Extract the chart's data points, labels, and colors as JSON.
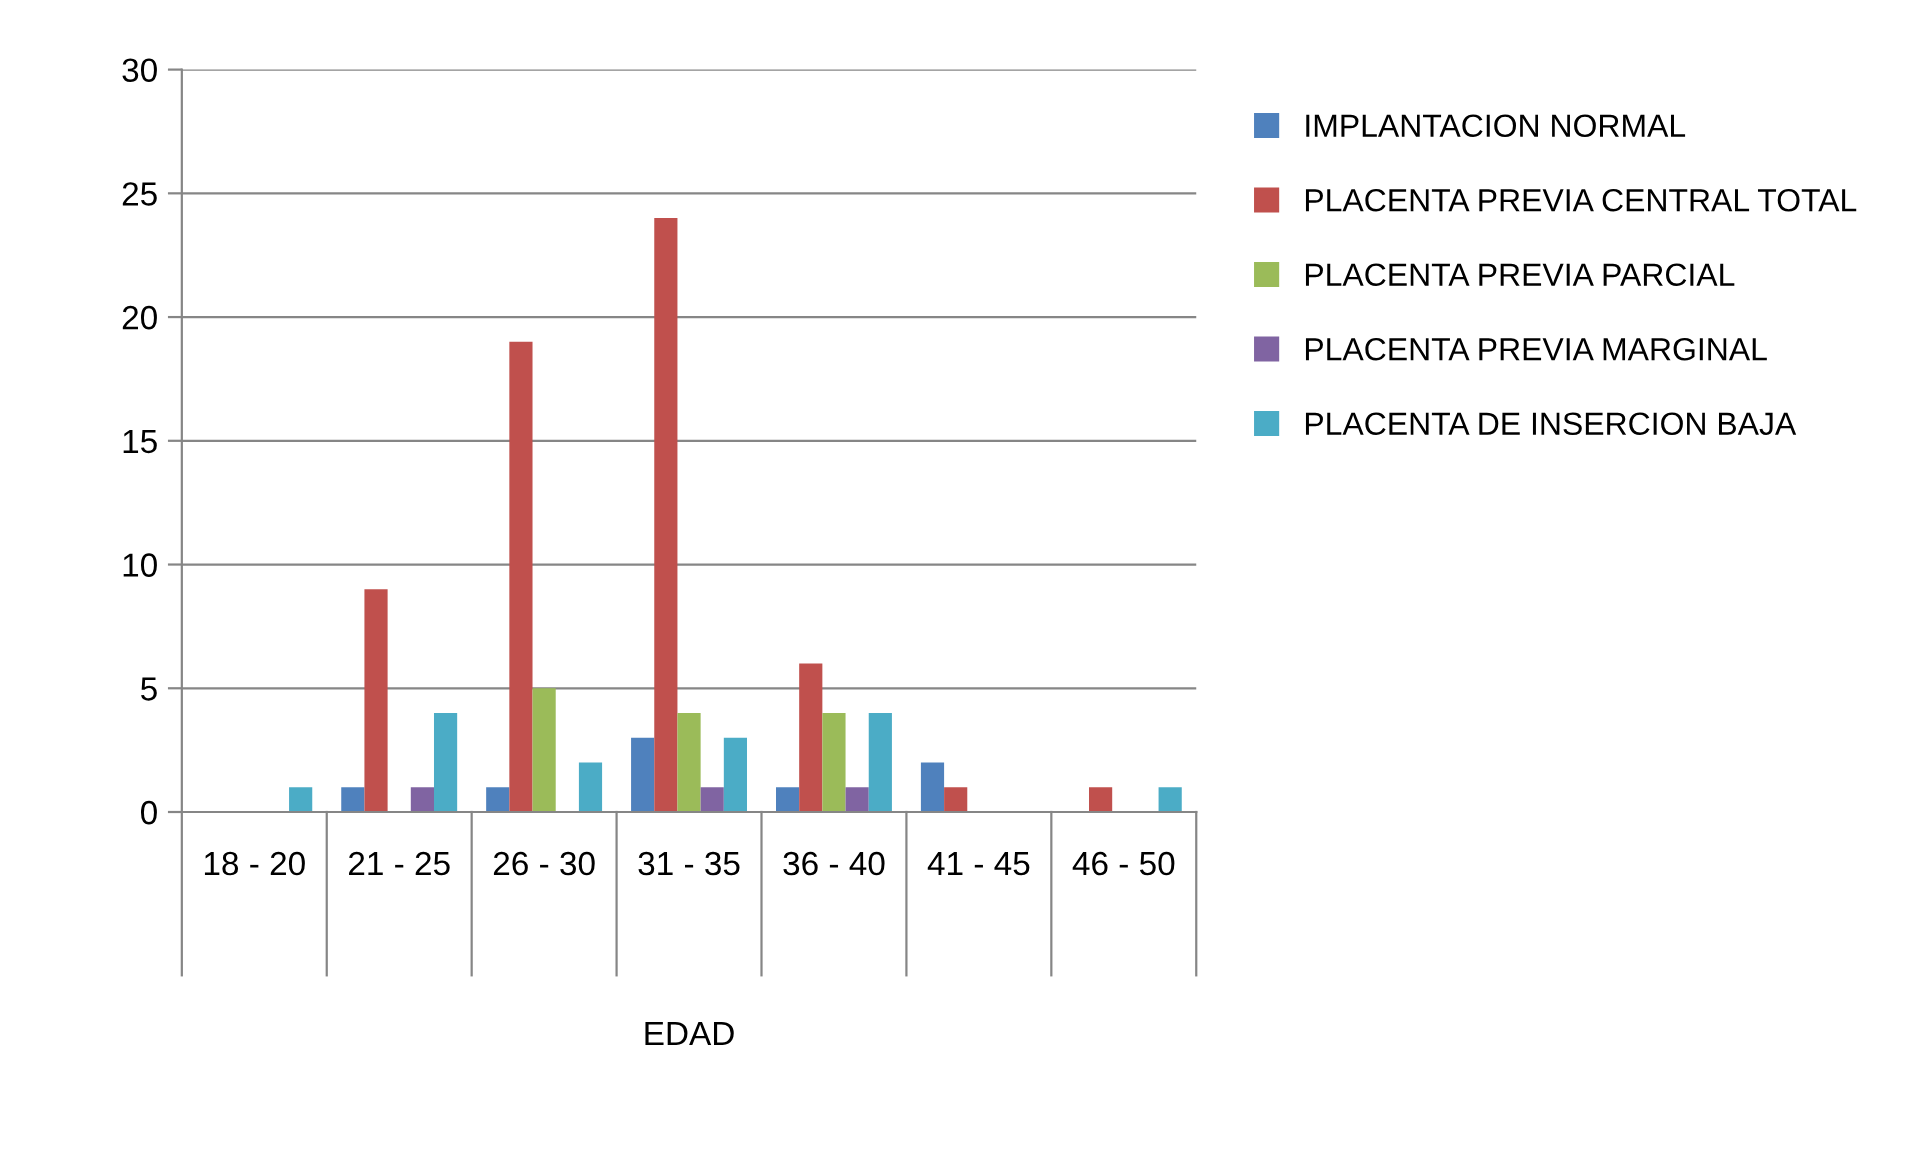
{
  "chart_data": {
    "type": "bar",
    "xlabel": "EDAD",
    "categories": [
      "18 - 20",
      "21 - 25",
      "26 - 30",
      "31 - 35",
      "36 - 40",
      "41 - 45",
      "46 - 50"
    ],
    "series": [
      {
        "name": "IMPLANTACION NORMAL",
        "color": "#4f81bd",
        "values": [
          0,
          1,
          1,
          3,
          1,
          2,
          0
        ]
      },
      {
        "name": "PLACENTA PREVIA CENTRAL TOTAL",
        "color": "#c0504d",
        "values": [
          0,
          9,
          19,
          24,
          6,
          1,
          1
        ]
      },
      {
        "name": "PLACENTA PREVIA PARCIAL",
        "color": "#9bbb59",
        "values": [
          0,
          0,
          5,
          4,
          4,
          0,
          0
        ]
      },
      {
        "name": "PLACENTA PREVIA MARGINAL",
        "color": "#8064a2",
        "values": [
          0,
          1,
          0,
          1,
          1,
          0,
          0
        ]
      },
      {
        "name": "PLACENTA DE INSERCION BAJA",
        "color": "#4bacc6",
        "values": [
          1,
          4,
          2,
          3,
          4,
          0,
          1
        ]
      }
    ],
    "ylim": [
      0,
      30
    ],
    "yticks": [
      0,
      5,
      10,
      15,
      20,
      25,
      30
    ],
    "grid": "y",
    "legend": "right"
  }
}
